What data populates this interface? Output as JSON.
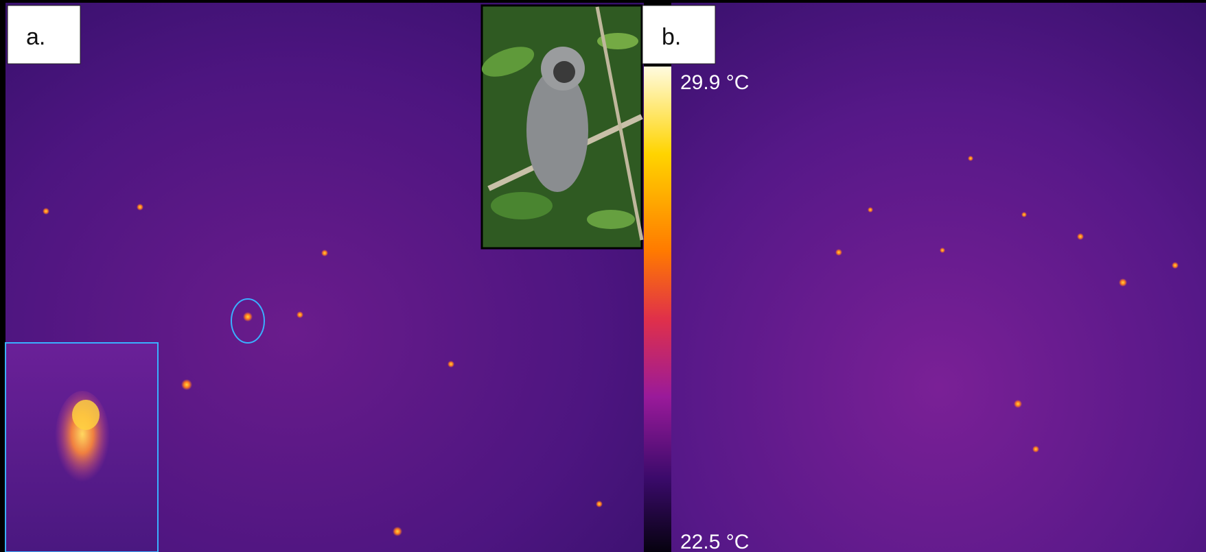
{
  "panels": {
    "a": {
      "label": "a."
    },
    "b": {
      "label": "b."
    }
  },
  "colorbar": {
    "max_label": "29.9 °C",
    "min_label": "22.5 °C"
  }
}
